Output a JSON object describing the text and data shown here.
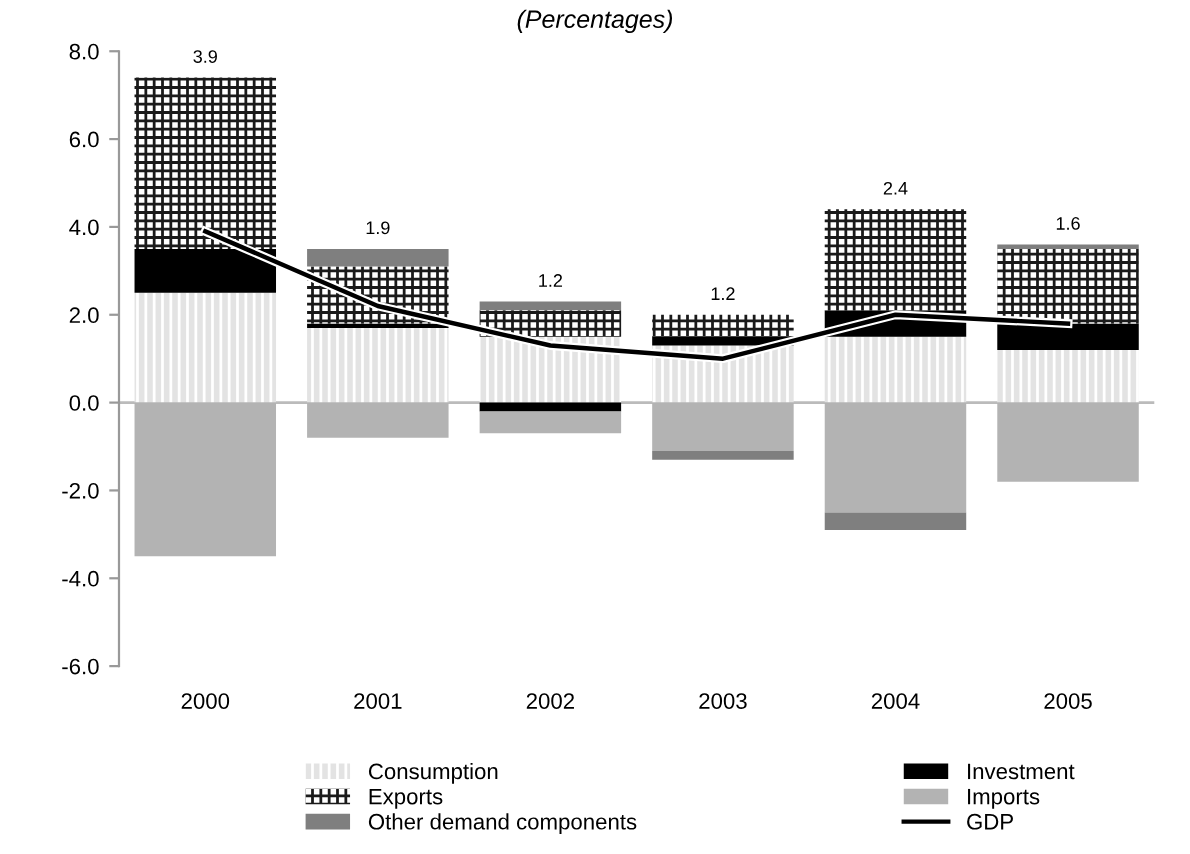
{
  "chart_data": {
    "type": "bar",
    "stacked": true,
    "title": "(Percentages)",
    "categories": [
      "2000",
      "2001",
      "2002",
      "2003",
      "2004",
      "2005"
    ],
    "series": [
      {
        "name": "Consumption",
        "color": "#e3e3e3",
        "values": [
          2.5,
          1.7,
          1.5,
          1.3,
          1.5,
          1.2
        ]
      },
      {
        "name": "Investment",
        "color": "#000000",
        "values": [
          1.0,
          0.1,
          -0.2,
          0.2,
          0.6,
          0.6
        ]
      },
      {
        "name": "Exports",
        "color": "#1a1a1a",
        "values": [
          3.9,
          1.3,
          0.6,
          0.5,
          2.3,
          1.7
        ]
      },
      {
        "name": "Imports",
        "color": "#b3b3b3",
        "values": [
          -3.5,
          -0.8,
          -0.5,
          -1.1,
          -2.5,
          -1.8
        ]
      },
      {
        "name": "Other demand components",
        "color": "#7f7f7f",
        "values": [
          null,
          0.4,
          0.2,
          -0.2,
          -0.4,
          0.1
        ]
      },
      {
        "name": "GDP",
        "type": "line",
        "color": "#000000",
        "values": [
          3.9,
          2.2,
          1.3,
          1.0,
          2.0,
          1.8
        ]
      }
    ],
    "annotations": [
      {
        "text": "3.9",
        "x": "2000",
        "y": 7.4
      },
      {
        "text": "1.9",
        "x": "2001",
        "y": 3.5
      },
      {
        "text": "1.2",
        "x": "2002",
        "y": 2.3
      },
      {
        "text": "1.2",
        "x": "2003",
        "y": 2.0
      },
      {
        "text": "2.4",
        "x": "2004",
        "y": 4.4
      },
      {
        "text": "1.6",
        "x": "2005",
        "y": 3.6
      }
    ],
    "ylim": [
      -6,
      8
    ],
    "yticks": [
      {
        "value": -6,
        "label": "-6.0"
      },
      {
        "value": -4,
        "label": "-4.0"
      },
      {
        "value": -2,
        "label": "-2.0"
      },
      {
        "value": 0,
        "label": "0.0"
      },
      {
        "value": 2,
        "label": "2.0"
      },
      {
        "value": 4,
        "label": "4.0"
      },
      {
        "value": 6,
        "label": "6.0"
      },
      {
        "value": 8,
        "label": "8.0"
      }
    ],
    "ref_lines": [
      {
        "axis": "y",
        "value": 0,
        "color": "#bbbbbb"
      }
    ],
    "grid": false,
    "legend": "bottom"
  }
}
